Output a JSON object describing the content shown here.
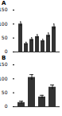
{
  "chart_data": [
    {
      "type": "bar",
      "title": "A",
      "categories": [
        null,
        null,
        null,
        null,
        null,
        null,
        null
      ],
      "values": [
        100,
        30,
        45,
        55,
        40,
        60,
        90
      ],
      "errors": [
        8,
        5,
        6,
        7,
        5,
        8,
        10
      ],
      "color": "#333333",
      "ylim": [
        0,
        150
      ],
      "yticks": [
        0,
        50,
        100,
        150
      ],
      "grid": false,
      "tick_labels": "y"
    },
    {
      "type": "bar",
      "title": "B",
      "categories": [
        null,
        null,
        null,
        null
      ],
      "values": [
        15,
        105,
        35,
        70
      ],
      "errors": [
        5,
        10,
        6,
        8
      ],
      "color": "#333333",
      "ylim": [
        0,
        150
      ],
      "yticks": [
        0,
        50,
        100,
        150
      ],
      "grid": false,
      "tick_labels": "y"
    }
  ]
}
